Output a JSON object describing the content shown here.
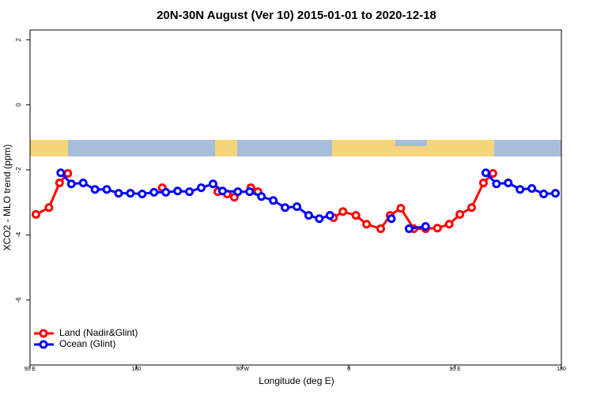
{
  "chart_data": {
    "type": "line",
    "title": "20N-30N August (Ver 10)   2015-01-01 to 2020-12-18",
    "x_label": "Longitude (deg E)",
    "y_label": "XCO2 - MLO trend (ppm)",
    "xlim": [
      90,
      540
    ],
    "ylim": [
      -8,
      2.3
    ],
    "xticks": [
      {
        "value": 90,
        "label": "90 E"
      },
      180,
      {
        "value": 270,
        "label": "90 W"
      },
      {
        "value": 360,
        "label": "0"
      },
      {
        "value": 450,
        "label": "90 E"
      },
      {
        "value": 540,
        "label": "180"
      }
    ],
    "yticks": [
      -6,
      -4,
      -2,
      0,
      2
    ],
    "legend": "bottom-left",
    "series": [
      {
        "name": "Land (Nadir&Glint)",
        "color": "#ff0000",
        "x": [
          95,
          106,
          115,
          122,
          160,
          202,
          230,
          249,
          257,
          263,
          270,
          277,
          283,
          300,
          347,
          355,
          366,
          375,
          387,
          395,
          404,
          415,
          425,
          435,
          445,
          454,
          464,
          474,
          482
        ],
        "values": [
          -3.37,
          -3.16,
          -2.4,
          -2.11,
          null,
          -2.55,
          null,
          -2.67,
          -2.74,
          -2.84,
          null,
          -2.55,
          -2.67,
          null,
          -3.47,
          -3.28,
          -3.4,
          -3.67,
          -3.81,
          -3.4,
          -3.18,
          -3.81,
          -3.81,
          -3.79,
          -3.67,
          -3.37,
          -3.16,
          -2.4,
          -2.11
        ]
      },
      {
        "name": "Ocean (Glint)",
        "color": "#0000ff",
        "x": [
          116,
          125,
          135,
          145,
          155,
          165,
          175,
          185,
          195,
          205,
          215,
          225,
          235,
          245,
          253,
          266,
          276,
          286,
          296,
          306,
          316,
          326,
          335,
          344,
          370,
          396,
          403,
          411,
          425,
          450,
          476,
          485,
          495,
          505,
          515,
          525,
          535
        ],
        "values": [
          -2.09,
          -2.43,
          -2.4,
          -2.6,
          -2.6,
          -2.72,
          -2.72,
          -2.74,
          -2.69,
          -2.69,
          -2.65,
          -2.67,
          -2.55,
          -2.43,
          -2.65,
          -2.67,
          -2.67,
          -2.82,
          -2.94,
          -3.16,
          -3.13,
          -3.4,
          -3.5,
          -3.4,
          null,
          -3.5,
          null,
          -3.81,
          -3.74,
          null,
          -2.09,
          -2.43,
          -2.4,
          -2.6,
          -2.57,
          -2.74,
          -2.72
        ]
      }
    ]
  }
}
